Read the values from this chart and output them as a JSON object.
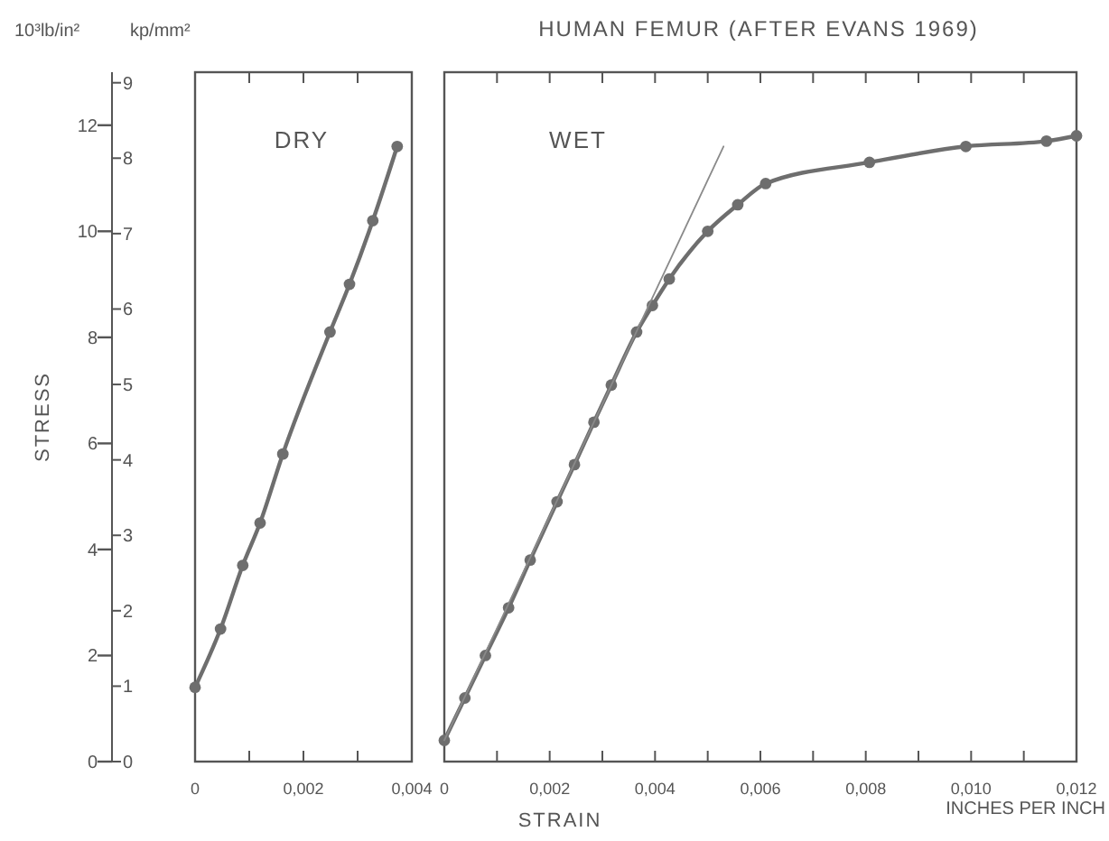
{
  "chart_data": [
    {
      "type": "line",
      "title": "DRY",
      "ylabel": "STRESS",
      "annotations": [
        "10³lb/in²",
        "kp/mm²"
      ],
      "xlim": [
        0,
        0.004
      ],
      "xticks": [
        0,
        {
          "value": 0.001,
          "label": null
        },
        {
          "value": 0.002,
          "label": "0,002"
        },
        {
          "value": 0.003,
          "label": null
        },
        {
          "value": 0.004,
          "label": "0,004"
        }
      ],
      "ylim": [
        0,
        13
      ],
      "yticks": [
        0,
        2,
        4,
        6,
        8,
        10,
        12
      ],
      "y2lim": [
        0,
        9.14
      ],
      "y2ticks": [
        0,
        1,
        2,
        3,
        4,
        5,
        6,
        7,
        8,
        9
      ],
      "marker": "circle",
      "series": [
        {
          "color": "#6e6e6e",
          "x": [
            0,
            0.00047,
            0.00088,
            0.0012,
            0.00162,
            0.00249,
            0.00285,
            0.00328,
            0.00373
          ],
          "values": [
            1.4,
            2.5,
            3.7,
            4.5,
            5.8,
            8.1,
            9.0,
            10.2,
            11.6
          ]
        }
      ]
    },
    {
      "type": "line",
      "title": "HUMAN FEMUR (AFTER EVANS 1969)",
      "subtitle": "WET",
      "xlabel": "STRAIN",
      "annotations": [
        "INCHES PER INCH"
      ],
      "xlim": [
        0,
        0.012
      ],
      "xticks": [
        0,
        {
          "value": 0.001,
          "label": null
        },
        {
          "value": 0.002,
          "label": "0,002"
        },
        {
          "value": 0.003,
          "label": null
        },
        {
          "value": 0.004,
          "label": "0,004"
        },
        {
          "value": 0.005,
          "label": null
        },
        {
          "value": 0.006,
          "label": "0,006"
        },
        {
          "value": 0.007,
          "label": null
        },
        {
          "value": 0.008,
          "label": "0,008"
        },
        {
          "value": 0.009,
          "label": null
        },
        {
          "value": 0.01,
          "label": "0,010"
        },
        {
          "value": 0.011,
          "label": null
        },
        {
          "value": 0.012,
          "label": "0,012"
        }
      ],
      "ylim": [
        0,
        13
      ],
      "tick_labels": "x",
      "marker": "circle",
      "series": [
        {
          "color": "#6e6e6e",
          "x": [
            0,
            0.00039,
            0.00078,
            0.00122,
            0.00163,
            0.00214,
            0.00247,
            0.00284,
            0.00317,
            0.00365,
            0.00395,
            0.00427,
            0.005,
            0.00557,
            0.0061,
            0.00807,
            0.0099,
            0.01143,
            0.012
          ],
          "values": [
            0.4,
            1.2,
            2.0,
            2.9,
            3.8,
            4.9,
            5.6,
            6.4,
            7.1,
            8.1,
            8.6,
            9.1,
            10.0,
            10.5,
            10.9,
            11.3,
            11.6,
            11.7,
            11.8
          ]
        },
        {
          "color": "#8a8a8a",
          "marker": "none",
          "x": [
            0,
            0.0053
          ],
          "values": [
            0.4,
            11.6
          ]
        }
      ]
    }
  ]
}
